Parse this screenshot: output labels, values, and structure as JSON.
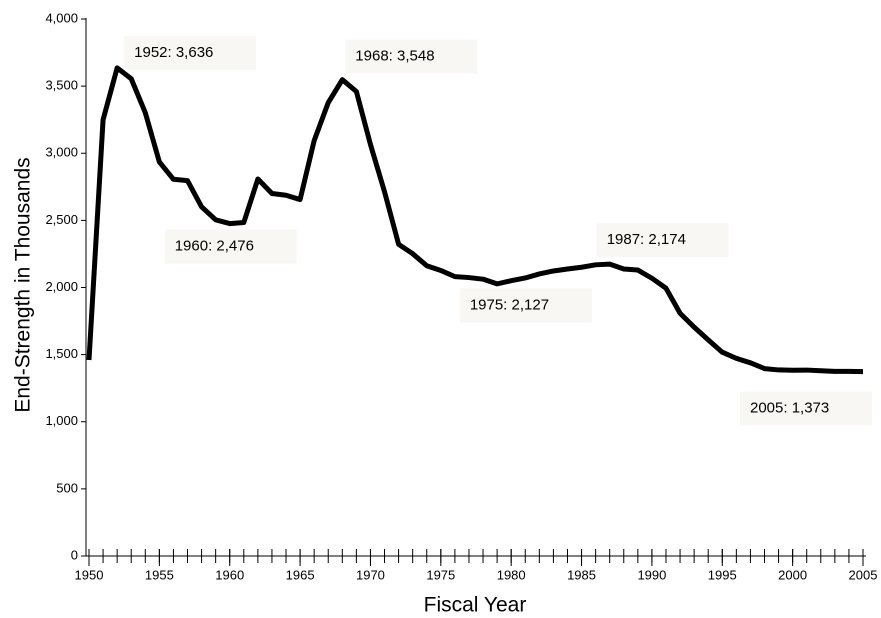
{
  "chart_data": {
    "type": "line",
    "x_label": "Fiscal Year",
    "y_label": "End-Strength in Thousands",
    "x": [
      1950,
      1951,
      1952,
      1953,
      1954,
      1955,
      1956,
      1957,
      1958,
      1959,
      1960,
      1961,
      1962,
      1963,
      1964,
      1965,
      1966,
      1967,
      1968,
      1969,
      1970,
      1971,
      1972,
      1973,
      1974,
      1975,
      1976,
      1977,
      1978,
      1979,
      1980,
      1981,
      1982,
      1983,
      1984,
      1985,
      1986,
      1987,
      1988,
      1989,
      1990,
      1991,
      1992,
      1993,
      1994,
      1995,
      1996,
      1997,
      1998,
      1999,
      2000,
      2001,
      2002,
      2003,
      2004,
      2005
    ],
    "values": [
      1460,
      3249,
      3636,
      3555,
      3302,
      2935,
      2806,
      2796,
      2601,
      2504,
      2476,
      2484,
      2808,
      2700,
      2687,
      2655,
      3094,
      3377,
      3548,
      3460,
      3065,
      2713,
      2322,
      2252,
      2162,
      2127,
      2081,
      2074,
      2062,
      2027,
      2051,
      2071,
      2101,
      2123,
      2138,
      2151,
      2169,
      2174,
      2138,
      2130,
      2069,
      1995,
      1808,
      1705,
      1610,
      1518,
      1472,
      1439,
      1396,
      1386,
      1384,
      1385,
      1380,
      1375,
      1375,
      1373
    ],
    "color": "#000000",
    "xlim": [
      1950,
      2005
    ],
    "xticks": [
      1950,
      1955,
      1960,
      1965,
      1970,
      1975,
      1980,
      1985,
      1990,
      1995,
      2000,
      2005
    ],
    "ylim": [
      0,
      4000
    ],
    "yticks": [
      0,
      500,
      {
        "value": 1000,
        "label": "1,000"
      },
      {
        "value": 1500,
        "label": "1,500"
      },
      {
        "value": 2000,
        "label": "2,000"
      },
      {
        "value": 2500,
        "label": "2,500"
      },
      {
        "value": 3000,
        "label": "3,000"
      },
      {
        "value": 3500,
        "label": "3,500"
      },
      {
        "value": 4000,
        "label": "4,000"
      }
    ],
    "grid": false,
    "annotations": [
      {
        "text": "1952:  3,636",
        "x": 1952,
        "y": 3636
      },
      {
        "text": "1960:  2,476",
        "x": 1960,
        "y": 2476
      },
      {
        "text": "1968:  3,548",
        "x": 1968,
        "y": 3548
      },
      {
        "text": "1975:  2,127",
        "x": 1975,
        "y": 2127
      },
      {
        "text": "1987:  2,174",
        "x": 1987,
        "y": 2174
      },
      {
        "text": "2005:  1,373",
        "x": 2005,
        "y": 1373
      }
    ]
  }
}
